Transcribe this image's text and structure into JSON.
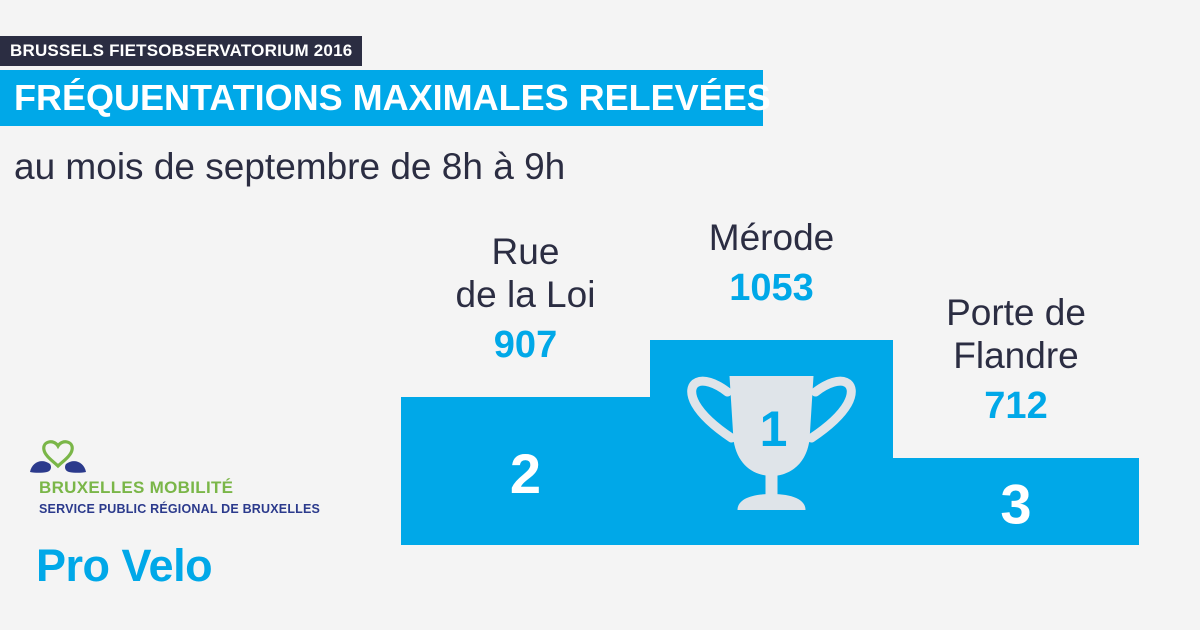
{
  "header": {
    "tag": "BRUSSELS FIETSOBSERVATORIUM 2016",
    "title": "FRÉQUENTATIONS MAXIMALES RELEVÉES",
    "subtitle": "au mois de septembre de 8h à 9h"
  },
  "chart_data": {
    "type": "bar",
    "categories": [
      "Rue de la Loi",
      "Mérode",
      "Porte de Flandre"
    ],
    "values": [
      907,
      1053,
      712
    ],
    "ranks": [
      "2",
      "1",
      "3"
    ],
    "label_lines": [
      [
        "Rue",
        "de la Loi"
      ],
      [
        "Mérode"
      ],
      [
        "Porte de",
        "Flandre"
      ]
    ],
    "value_labels": [
      "907",
      "1053",
      "712"
    ],
    "title": "FRÉQUENTATIONS MAXIMALES RELEVÉES",
    "subtitle": "au mois de septembre de 8h à 9h",
    "grid": false,
    "colors": {
      "podium": "#00a8e8",
      "value_text": "#00a8e8",
      "label_text": "#2b2d42",
      "trophy": "#dfe4e9"
    }
  },
  "logos": {
    "brand": "BRUXELLES MOBILITÉ",
    "service": "SERVICE PUBLIC RÉGIONAL DE BRUXELLES",
    "partner": "Pro Velo",
    "emblem_icon": "heart-drop-icon"
  },
  "colors": {
    "accent": "#00a8e8",
    "dark": "#2b2d42",
    "background": "#f4f4f4",
    "brand_green": "#7ab648",
    "brand_navy": "#2b3a8c"
  }
}
